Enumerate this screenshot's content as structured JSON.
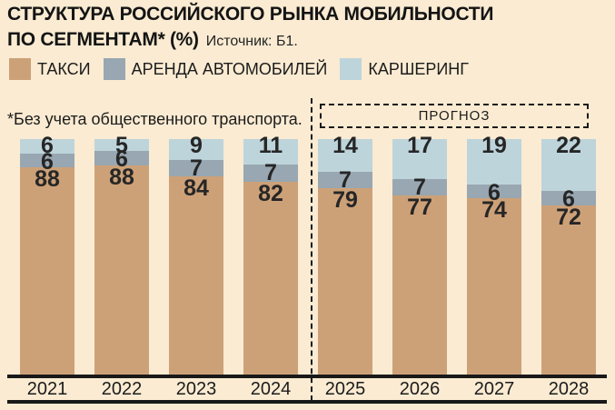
{
  "title": {
    "line1": "СТРУКТУРА РОССИЙСКОГО РЫНКА МОБИЛЬНОСТИ",
    "line2": "ПО СЕГМЕНТАМ* (%)",
    "source": "Источник: Б1."
  },
  "legend": [
    {
      "label": "ТАКСИ",
      "color": "#CDA178"
    },
    {
      "label": "АРЕНДА АВТОМОБИЛЕЙ",
      "color": "#98A7B1"
    },
    {
      "label": "КАРШЕРИНГ",
      "color": "#BED4DB"
    }
  ],
  "footnote": "*Без учета общественного транспорта.",
  "forecast_label": "ПРОГНОЗ",
  "colors": {
    "background": "#FAEBD2",
    "axis": "#191919",
    "text": "#1c1c1c"
  },
  "chart_data": {
    "type": "bar",
    "stacked": true,
    "unit": "%",
    "title": "СТРУКТУРА РОССИЙСКОГО РЫНКА МОБИЛЬНОСТИ ПО СЕГМЕНТАМ* (%)",
    "categories": [
      "2021",
      "2022",
      "2023",
      "2024",
      "2025",
      "2026",
      "2027",
      "2028"
    ],
    "forecast_categories": [
      "2025",
      "2026",
      "2027",
      "2028"
    ],
    "ylim": [
      0,
      100
    ],
    "series": [
      {
        "name": "ТАКСИ",
        "color": "#CDA178",
        "values": [
          88,
          88,
          84,
          82,
          79,
          77,
          74,
          72
        ]
      },
      {
        "name": "АРЕНДА АВТОМОБИЛЕЙ",
        "color": "#98A7B1",
        "values": [
          6,
          6,
          7,
          7,
          7,
          7,
          6,
          6
        ]
      },
      {
        "name": "КАРШЕРИНГ",
        "color": "#BED4DB",
        "values": [
          6,
          5,
          9,
          11,
          14,
          17,
          19,
          22
        ]
      }
    ]
  }
}
